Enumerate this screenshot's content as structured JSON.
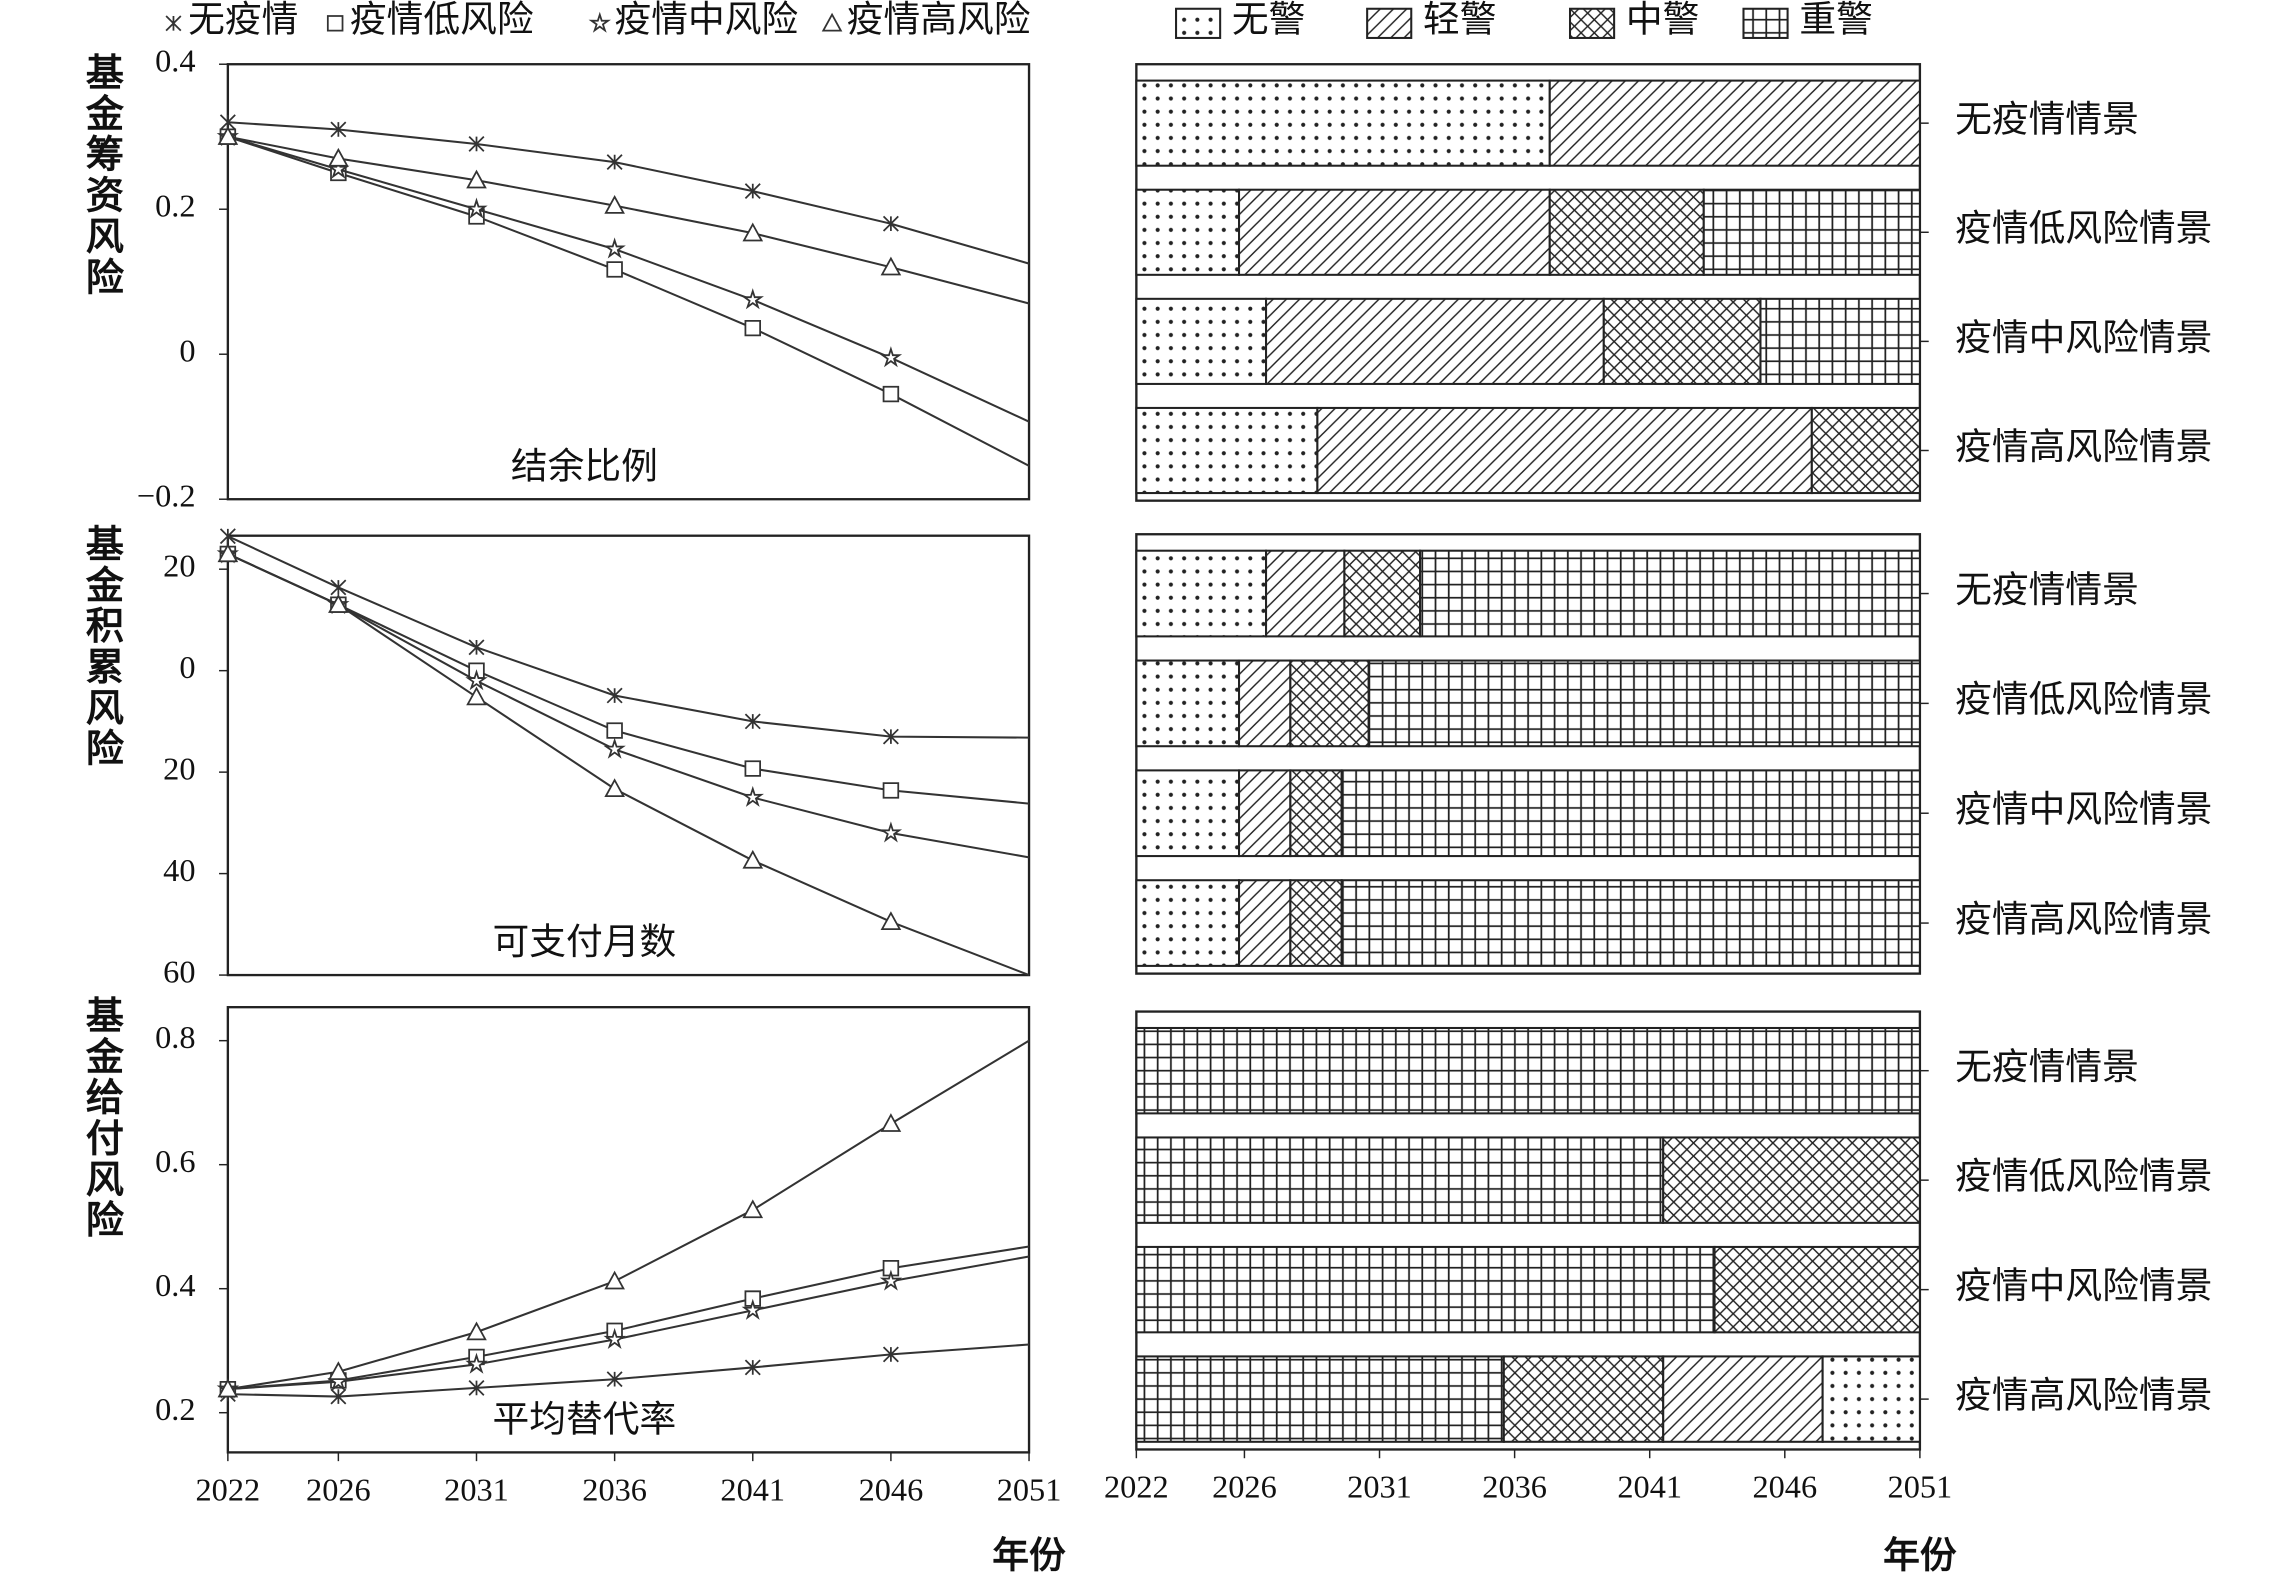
{
  "levels": [
    {
      "name": "无警",
      "pattern": "dots"
    },
    {
      "name": "轻警",
      "pattern": "hatch"
    },
    {
      "name": "中警",
      "pattern": "cross"
    },
    {
      "name": "重警",
      "pattern": "grid"
    }
  ],
  "chart_data": [
    {
      "type": "line",
      "ylabel": "基金筹资风险",
      "annotation": "结余比例",
      "x": [
        2022,
        2026,
        2031,
        2036,
        2041,
        2046,
        2051
      ],
      "xlim": [
        2022,
        2051
      ],
      "ylim": [
        -0.2,
        0.4
      ],
      "yticks": [
        0.4,
        0.2,
        0,
        {
          "value": -0.2,
          "label": "−0.2"
        }
      ],
      "series": [
        {
          "name": "无疫情",
          "color": "#333",
          "marker": "x",
          "values": [
            0.32,
            0.31,
            0.29,
            0.265,
            0.225,
            0.18,
            0.125
          ]
        },
        {
          "name": "疫情低风险",
          "color": "#333",
          "marker": "square",
          "values": [
            0.3,
            0.25,
            0.19,
            0.117,
            0.036,
            -0.055,
            -0.154
          ]
        },
        {
          "name": "疫情中风险",
          "color": "#333",
          "marker": "star",
          "values": [
            0.3,
            0.255,
            0.2,
            0.145,
            0.075,
            -0.005,
            -0.093
          ]
        },
        {
          "name": "疫情高风险",
          "color": "#333",
          "marker": "triangle",
          "values": [
            0.3,
            0.27,
            0.24,
            0.205,
            0.167,
            0.12,
            0.07
          ]
        }
      ]
    },
    {
      "type": "line",
      "ylabel": "基金积累风险",
      "annotation": "可支付月数",
      "x": [
        2022,
        2026,
        2031,
        2036,
        2041,
        2046,
        2051
      ],
      "xlim": [
        2022,
        2051
      ],
      "ylim": [
        -60,
        26.6
      ],
      "yticks": [
        20,
        0,
        {
          "value": -20,
          "label": "20"
        },
        {
          "value": -40,
          "label": "40"
        },
        {
          "value": -60,
          "label": "60"
        }
      ],
      "series": [
        {
          "color": "#333",
          "marker": "x",
          "values": [
            26.5,
            16.4,
            4.6,
            -4.9,
            -10,
            -13,
            -13.2
          ]
        },
        {
          "color": "#333",
          "marker": "square",
          "values": [
            23,
            13,
            0,
            -11.8,
            -19.3,
            -23.6,
            -26.2
          ]
        },
        {
          "color": "#333",
          "marker": "star",
          "values": [
            23,
            13,
            -2,
            -15.5,
            -25,
            -32,
            -36.8
          ]
        },
        {
          "color": "#333",
          "marker": "triangle",
          "values": [
            23,
            13,
            -5.2,
            -23.3,
            -37.4,
            -49.5,
            -60
          ]
        }
      ]
    },
    {
      "type": "line",
      "ylabel": "基金给付风险",
      "annotation": "平均替代率",
      "xlabel": "年份",
      "x": [
        2022,
        2026,
        2031,
        2036,
        2041,
        2046,
        2051
      ],
      "xlim": [
        2022,
        2051
      ],
      "xticks": [
        2022,
        2026,
        2031,
        2036,
        2041,
        2046,
        2051
      ],
      "ylim": [
        0.136,
        0.854
      ],
      "yticks": [
        0.8,
        0.6,
        0.4,
        0.2
      ],
      "series": [
        {
          "color": "#333",
          "marker": "x",
          "values": [
            0.23,
            0.226,
            0.24,
            0.254,
            0.273,
            0.294,
            0.31
          ]
        },
        {
          "color": "#333",
          "marker": "square",
          "values": [
            0.238,
            0.252,
            0.29,
            0.332,
            0.384,
            0.433,
            0.468
          ]
        },
        {
          "color": "#333",
          "marker": "star",
          "values": [
            0.238,
            0.25,
            0.278,
            0.318,
            0.365,
            0.412,
            0.452
          ]
        },
        {
          "color": "#333",
          "marker": "triangle",
          "values": [
            0.238,
            0.266,
            0.33,
            0.412,
            0.527,
            0.666,
            0.8
          ]
        }
      ]
    },
    {
      "type": "timeline",
      "xlim": [
        2022,
        2051
      ],
      "rows": [
        {
          "name": "无疫情情景",
          "bounds": [
            2022,
            2037.3,
            2051
          ],
          "levels": [
            0,
            1
          ]
        },
        {
          "name": "疫情低风险情景",
          "bounds": [
            2022,
            2025.8,
            2037.3,
            2043,
            2051
          ],
          "levels": [
            0,
            1,
            2,
            3
          ]
        },
        {
          "name": "疫情中风险情景",
          "bounds": [
            2022,
            2026.8,
            2039.3,
            2045.1,
            2051
          ],
          "levels": [
            0,
            1,
            2,
            3
          ]
        },
        {
          "name": "疫情高风险情景",
          "bounds": [
            2022,
            2028.7,
            2047,
            2051
          ],
          "levels": [
            0,
            1,
            2
          ]
        }
      ]
    },
    {
      "type": "timeline",
      "xlim": [
        2022,
        2051
      ],
      "rows": [
        {
          "name": "无疫情情景",
          "bounds": [
            2022,
            2026.8,
            2029.7,
            2032.5,
            2051
          ],
          "levels": [
            0,
            1,
            2,
            3
          ]
        },
        {
          "name": "疫情低风险情景",
          "bounds": [
            2022,
            2025.8,
            2027.7,
            2030.6,
            2051
          ],
          "levels": [
            0,
            1,
            2,
            3
          ]
        },
        {
          "name": "疫情中风险情景",
          "bounds": [
            2022,
            2025.8,
            2027.7,
            2029.6,
            2051
          ],
          "levels": [
            0,
            1,
            2,
            3
          ]
        },
        {
          "name": "疫情高风险情景",
          "bounds": [
            2022,
            2025.8,
            2027.7,
            2029.6,
            2051
          ],
          "levels": [
            0,
            1,
            2,
            3
          ]
        }
      ]
    },
    {
      "type": "timeline",
      "xlim": [
        2022,
        2051
      ],
      "xlabel": "年份",
      "xticks": [
        2022,
        2026,
        2031,
        2036,
        2041,
        2046,
        2051
      ],
      "rows": [
        {
          "name": "无疫情情景",
          "bounds": [
            2022,
            2051
          ],
          "levels": [
            3
          ]
        },
        {
          "name": "疫情低风险情景",
          "bounds": [
            2022,
            2041.5,
            2051
          ],
          "levels": [
            3,
            2
          ]
        },
        {
          "name": "疫情中风险情景",
          "bounds": [
            2022,
            2043.4,
            2051
          ],
          "levels": [
            3,
            2
          ]
        },
        {
          "name": "疫情高风险情景",
          "bounds": [
            2022,
            2035.6,
            2041.5,
            2047.4,
            2051
          ],
          "levels": [
            3,
            2,
            1,
            0
          ]
        }
      ]
    }
  ]
}
